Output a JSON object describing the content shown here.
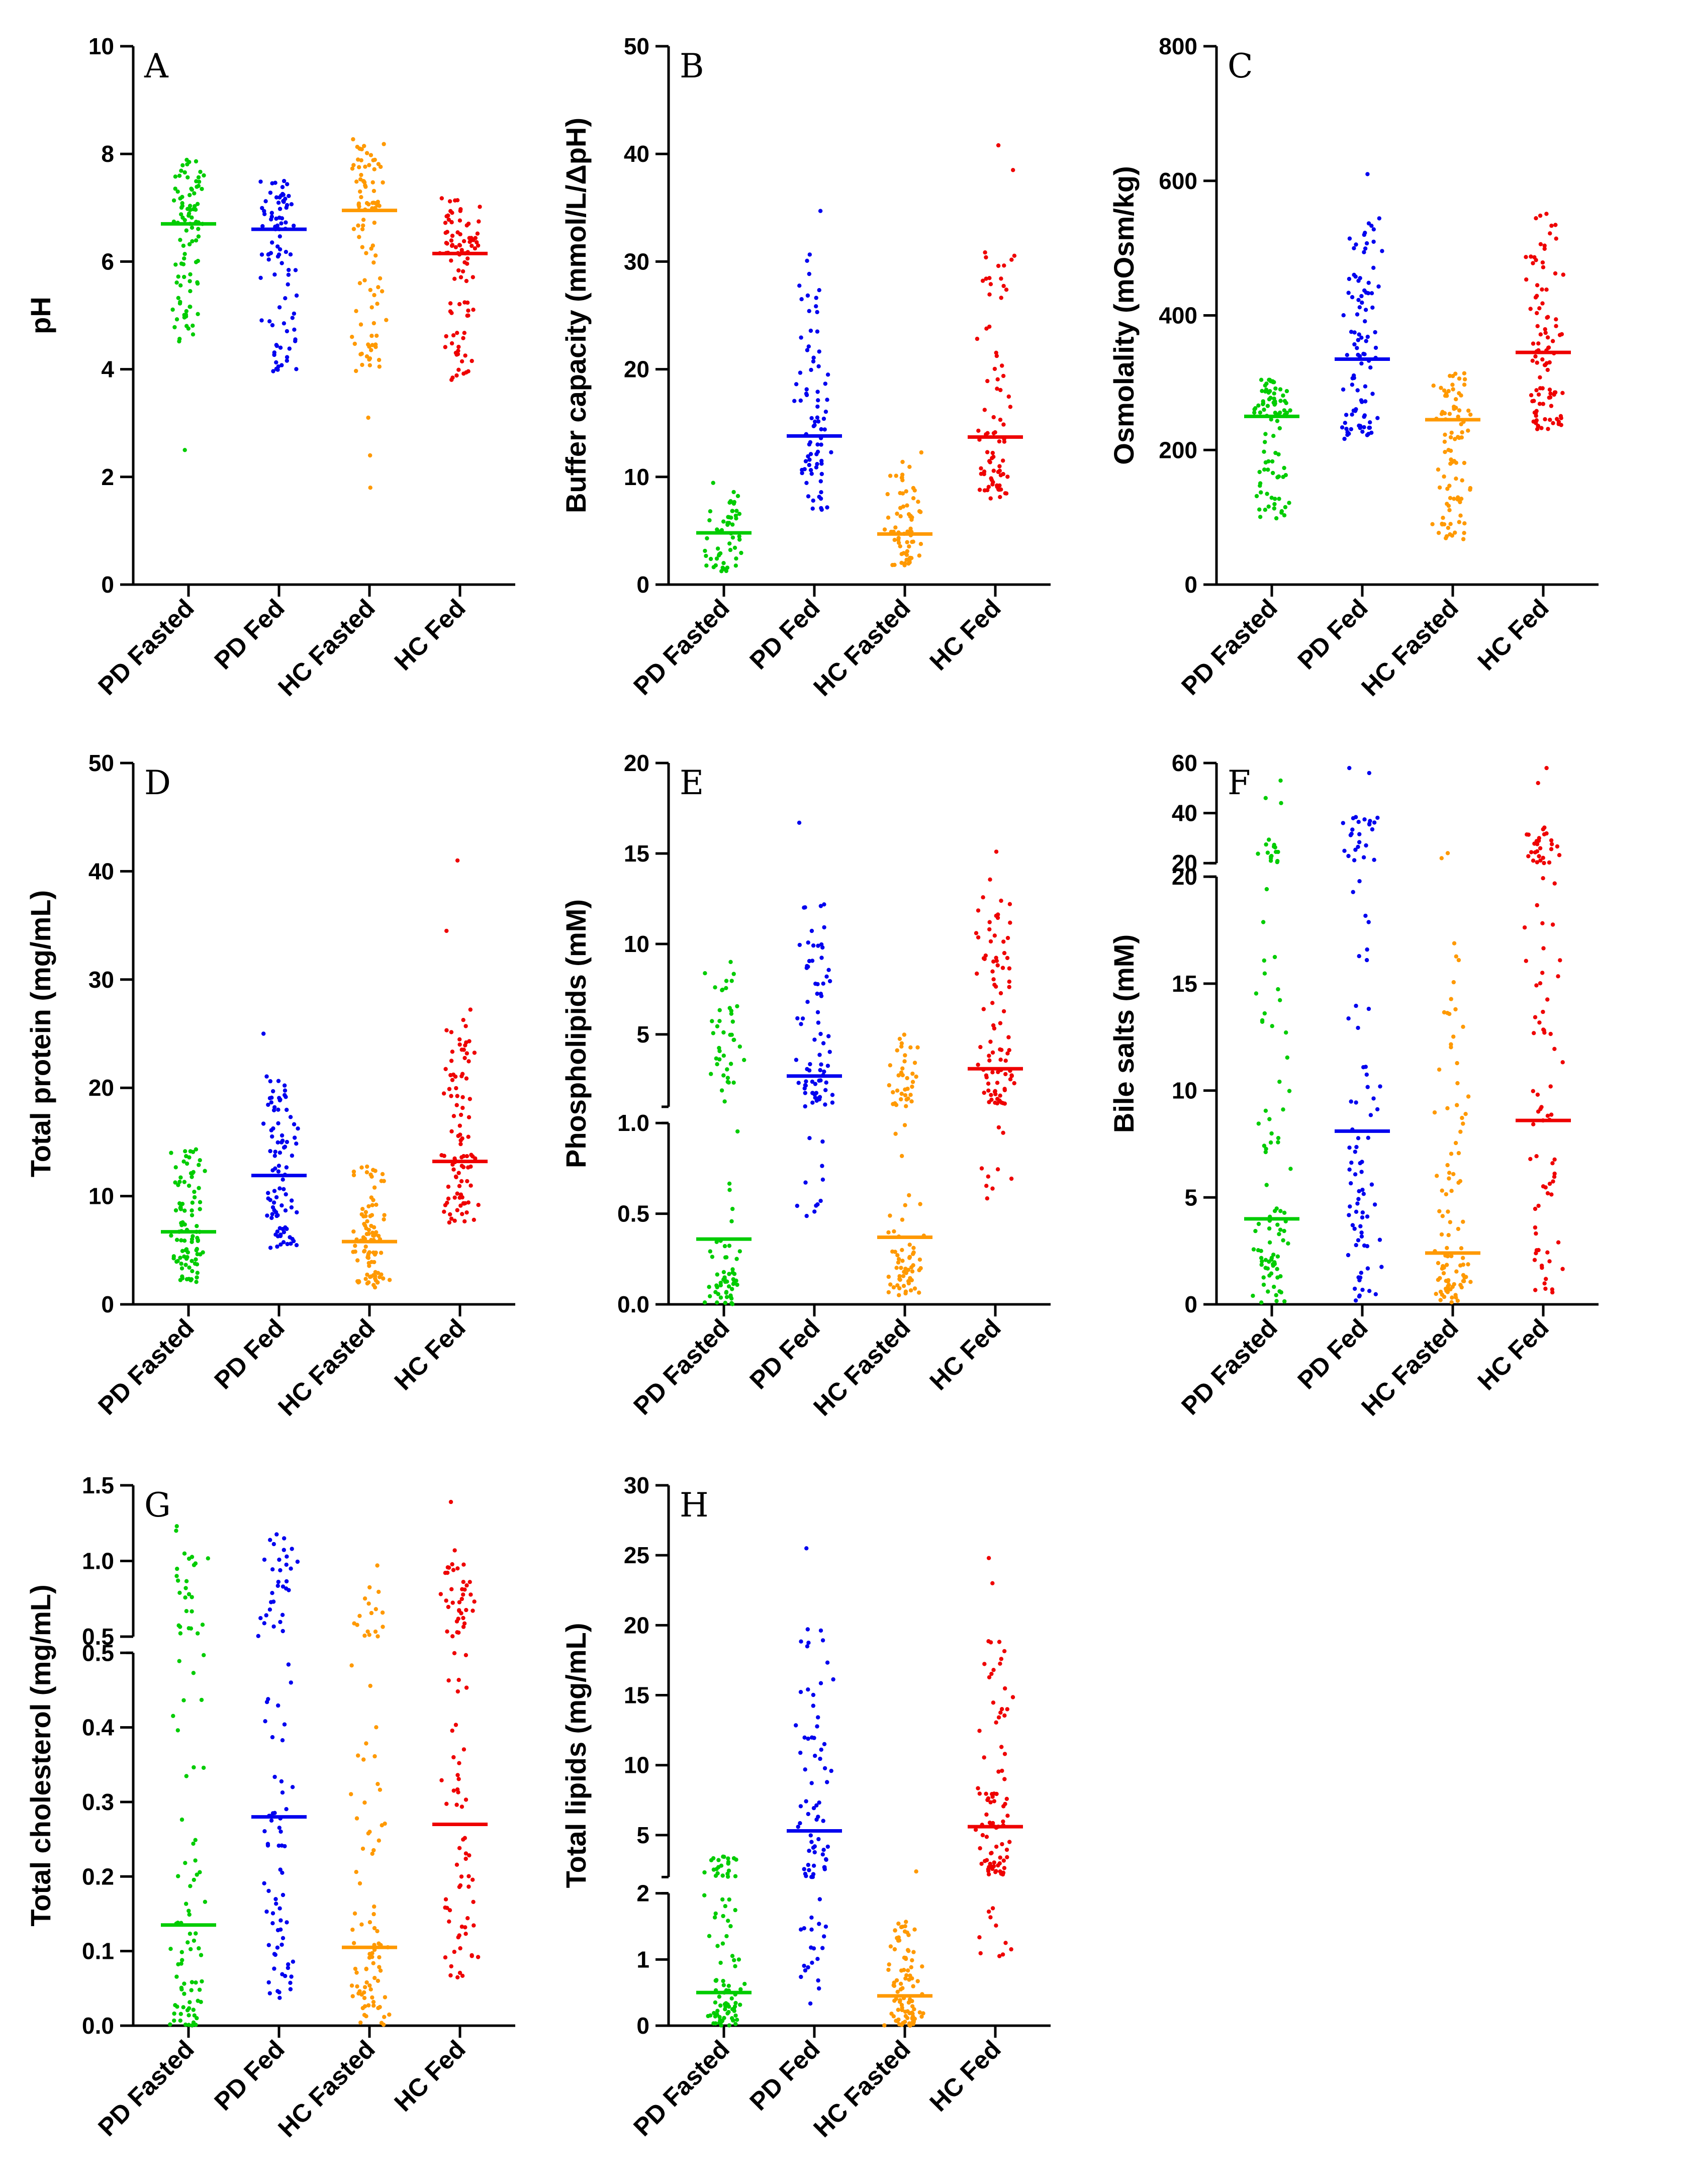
{
  "colors": {
    "PD Fasted": "#00cc00",
    "PD Fed": "#0000ee",
    "HC Fasted": "#ff9900",
    "HC Fed": "#ee0000"
  },
  "chart_data": [
    {
      "type": "scatter",
      "letter": "A",
      "ylabel": "pH",
      "categories": [
        "PD Fasted",
        "PD Fed",
        "HC Fasted",
        "HC Fed"
      ],
      "segments": [
        {
          "min": 0,
          "max": 10,
          "ticks": [
            0,
            2,
            4,
            6,
            8,
            10
          ]
        }
      ],
      "medians": [
        6.7,
        6.6,
        6.95,
        6.15
      ],
      "distributions": [
        {
          "n": 95,
          "lo": 4.5,
          "hi": 7.9,
          "extra": [
            2.5
          ]
        },
        {
          "n": 90,
          "lo": 3.9,
          "hi": 7.5,
          "extra": []
        },
        {
          "n": 98,
          "lo": 3.9,
          "hi": 8.3,
          "extra": [
            1.8,
            2.4,
            3.1
          ]
        },
        {
          "n": 95,
          "lo": 3.8,
          "hi": 7.2,
          "extra": []
        }
      ]
    },
    {
      "type": "scatter",
      "letter": "B",
      "ylabel": "Buffer capacity (mmol/L/ΔpH)",
      "categories": [
        "PD Fasted",
        "PD Fed",
        "HC Fasted",
        "HC Fed"
      ],
      "segments": [
        {
          "min": 0,
          "max": 50,
          "ticks": [
            0,
            10,
            20,
            30,
            40,
            50
          ]
        }
      ],
      "medians": [
        4.8,
        13.8,
        4.7,
        13.7
      ],
      "distributions": [
        {
          "n": 55,
          "lo": 1.2,
          "hi": 9.5,
          "extra": []
        },
        {
          "n": 80,
          "lo": 6.5,
          "hi": 31.5,
          "extra": [
            34.7
          ]
        },
        {
          "n": 70,
          "lo": 1.5,
          "hi": 12.3,
          "extra": []
        },
        {
          "n": 80,
          "lo": 8.0,
          "hi": 31.0,
          "extra": [
            38.5,
            40.8
          ]
        }
      ]
    },
    {
      "type": "scatter",
      "letter": "C",
      "ylabel": "Osmolality (mOsm/kg)",
      "categories": [
        "PD Fasted",
        "PD Fed",
        "HC Fasted",
        "HC Fed"
      ],
      "segments": [
        {
          "min": 0,
          "max": 800,
          "ticks": [
            0,
            200,
            400,
            600,
            800
          ]
        }
      ],
      "medians": [
        250,
        335,
        245,
        345
      ],
      "distributions": [
        {
          "n": 90,
          "lo": 95,
          "hi": 305,
          "extra": []
        },
        {
          "n": 95,
          "lo": 215,
          "hi": 545,
          "extra": [
            610
          ]
        },
        {
          "n": 90,
          "lo": 65,
          "hi": 315,
          "extra": []
        },
        {
          "n": 98,
          "lo": 230,
          "hi": 555,
          "extra": []
        }
      ]
    },
    {
      "type": "scatter",
      "letter": "D",
      "ylabel": "Total protein (mg/mL)",
      "categories": [
        "PD Fasted",
        "PD Fed",
        "HC Fasted",
        "HC Fed"
      ],
      "segments": [
        {
          "min": 0,
          "max": 50,
          "ticks": [
            0,
            10,
            20,
            30,
            40,
            50
          ]
        }
      ],
      "medians": [
        6.7,
        11.9,
        5.8,
        13.2
      ],
      "distributions": [
        {
          "n": 95,
          "lo": 2.0,
          "hi": 14.8,
          "extra": []
        },
        {
          "n": 90,
          "lo": 5.0,
          "hi": 21.5,
          "extra": [
            25.0
          ]
        },
        {
          "n": 95,
          "lo": 1.5,
          "hi": 12.8,
          "extra": []
        },
        {
          "n": 95,
          "lo": 7.5,
          "hi": 28.0,
          "extra": [
            34.5,
            41.0
          ]
        }
      ]
    },
    {
      "type": "scatter",
      "letter": "E",
      "ylabel": "Phospholipids (mM)",
      "categories": [
        "PD Fasted",
        "PD Fed",
        "HC Fasted",
        "HC Fed"
      ],
      "segments": [
        {
          "min": 0,
          "max": 1.0,
          "ticks": [
            0.0,
            0.5,
            1.0
          ],
          "labels": [
            "0.0",
            "0.5",
            "1.0"
          ]
        },
        {
          "min": 1.0,
          "max": 20,
          "ticks": [
            5,
            10,
            15,
            20
          ]
        }
      ],
      "medians": [
        0.36,
        2.7,
        0.37,
        3.1
      ],
      "distributions": [
        {
          "n": 95,
          "lo": 0.0,
          "hi": 9.3,
          "extra": []
        },
        {
          "n": 85,
          "lo": 0.42,
          "hi": 12.8,
          "extra": [
            16.7
          ]
        },
        {
          "n": 95,
          "lo": 0.05,
          "hi": 5.0,
          "extra": []
        },
        {
          "n": 98,
          "lo": 0.55,
          "hi": 13.8,
          "extra": [
            15.1
          ]
        }
      ]
    },
    {
      "type": "scatter",
      "letter": "F",
      "ylabel": "Bile salts (mM)",
      "categories": [
        "PD Fasted",
        "PD Fed",
        "HC Fasted",
        "HC Fed"
      ],
      "segments": [
        {
          "min": 0,
          "max": 20,
          "ticks": [
            0,
            5,
            10,
            15,
            20
          ]
        },
        {
          "min": 20,
          "max": 60,
          "ticks": [
            20,
            40,
            60
          ]
        }
      ],
      "medians": [
        4.0,
        8.1,
        2.4,
        8.6
      ],
      "distributions": [
        {
          "n": 95,
          "lo": 0.0,
          "hi": 30.0,
          "extra": [
            44,
            46,
            53
          ]
        },
        {
          "n": 95,
          "lo": 0.0,
          "hi": 39.0,
          "extra": [
            56,
            58
          ]
        },
        {
          "n": 95,
          "lo": 0.0,
          "hi": 17.0,
          "extra": [
            22,
            24
          ]
        },
        {
          "n": 95,
          "lo": 0.5,
          "hi": 35.0,
          "extra": [
            52,
            58
          ]
        }
      ]
    },
    {
      "type": "scatter",
      "letter": "G",
      "ylabel": "Total cholesterol (mg/mL)",
      "categories": [
        "PD Fasted",
        "PD Fed",
        "HC Fasted",
        "HC Fed"
      ],
      "segments": [
        {
          "min": 0,
          "max": 0.5,
          "ticks": [
            0.0,
            0.1,
            0.2,
            0.3,
            0.4,
            0.5
          ],
          "labels": [
            "0.0",
            "0.1",
            "0.2",
            "0.3",
            "0.4",
            "0.5"
          ]
        },
        {
          "min": 0.5,
          "max": 1.5,
          "ticks": [
            0.5,
            1.0,
            1.5
          ],
          "labels": [
            "0.5",
            "1.0",
            "1.5"
          ]
        }
      ],
      "medians": [
        0.135,
        0.28,
        0.105,
        0.27
      ],
      "distributions": [
        {
          "n": 95,
          "lo": 0.0,
          "hi": 1.05,
          "extra": [
            1.2,
            1.23
          ]
        },
        {
          "n": 95,
          "lo": 0.03,
          "hi": 1.18,
          "extra": []
        },
        {
          "n": 95,
          "lo": 0.0,
          "hi": 0.85,
          "extra": [
            0.97
          ]
        },
        {
          "n": 95,
          "lo": 0.06,
          "hi": 0.98,
          "extra": [
            1.07,
            1.39
          ]
        }
      ]
    },
    {
      "type": "scatter",
      "letter": "H",
      "ylabel": "Total lipids (mg/mL)",
      "categories": [
        "PD Fasted",
        "PD Fed",
        "HC Fasted",
        "HC Fed"
      ],
      "segments": [
        {
          "min": 0,
          "max": 2,
          "ticks": [
            0,
            1,
            2
          ]
        },
        {
          "min": 2,
          "max": 30,
          "ticks": [
            5,
            10,
            15,
            20,
            25,
            30
          ]
        }
      ],
      "medians": [
        0.5,
        5.3,
        0.45,
        5.6
      ],
      "distributions": [
        {
          "n": 95,
          "lo": 0.0,
          "hi": 3.5,
          "extra": []
        },
        {
          "n": 85,
          "lo": 0.2,
          "hi": 20.0,
          "extra": [
            25.5
          ]
        },
        {
          "n": 95,
          "lo": 0.0,
          "hi": 1.6,
          "extra": [
            2.4
          ]
        },
        {
          "n": 95,
          "lo": 0.9,
          "hi": 19.0,
          "extra": [
            23.0,
            24.8
          ]
        }
      ]
    }
  ]
}
